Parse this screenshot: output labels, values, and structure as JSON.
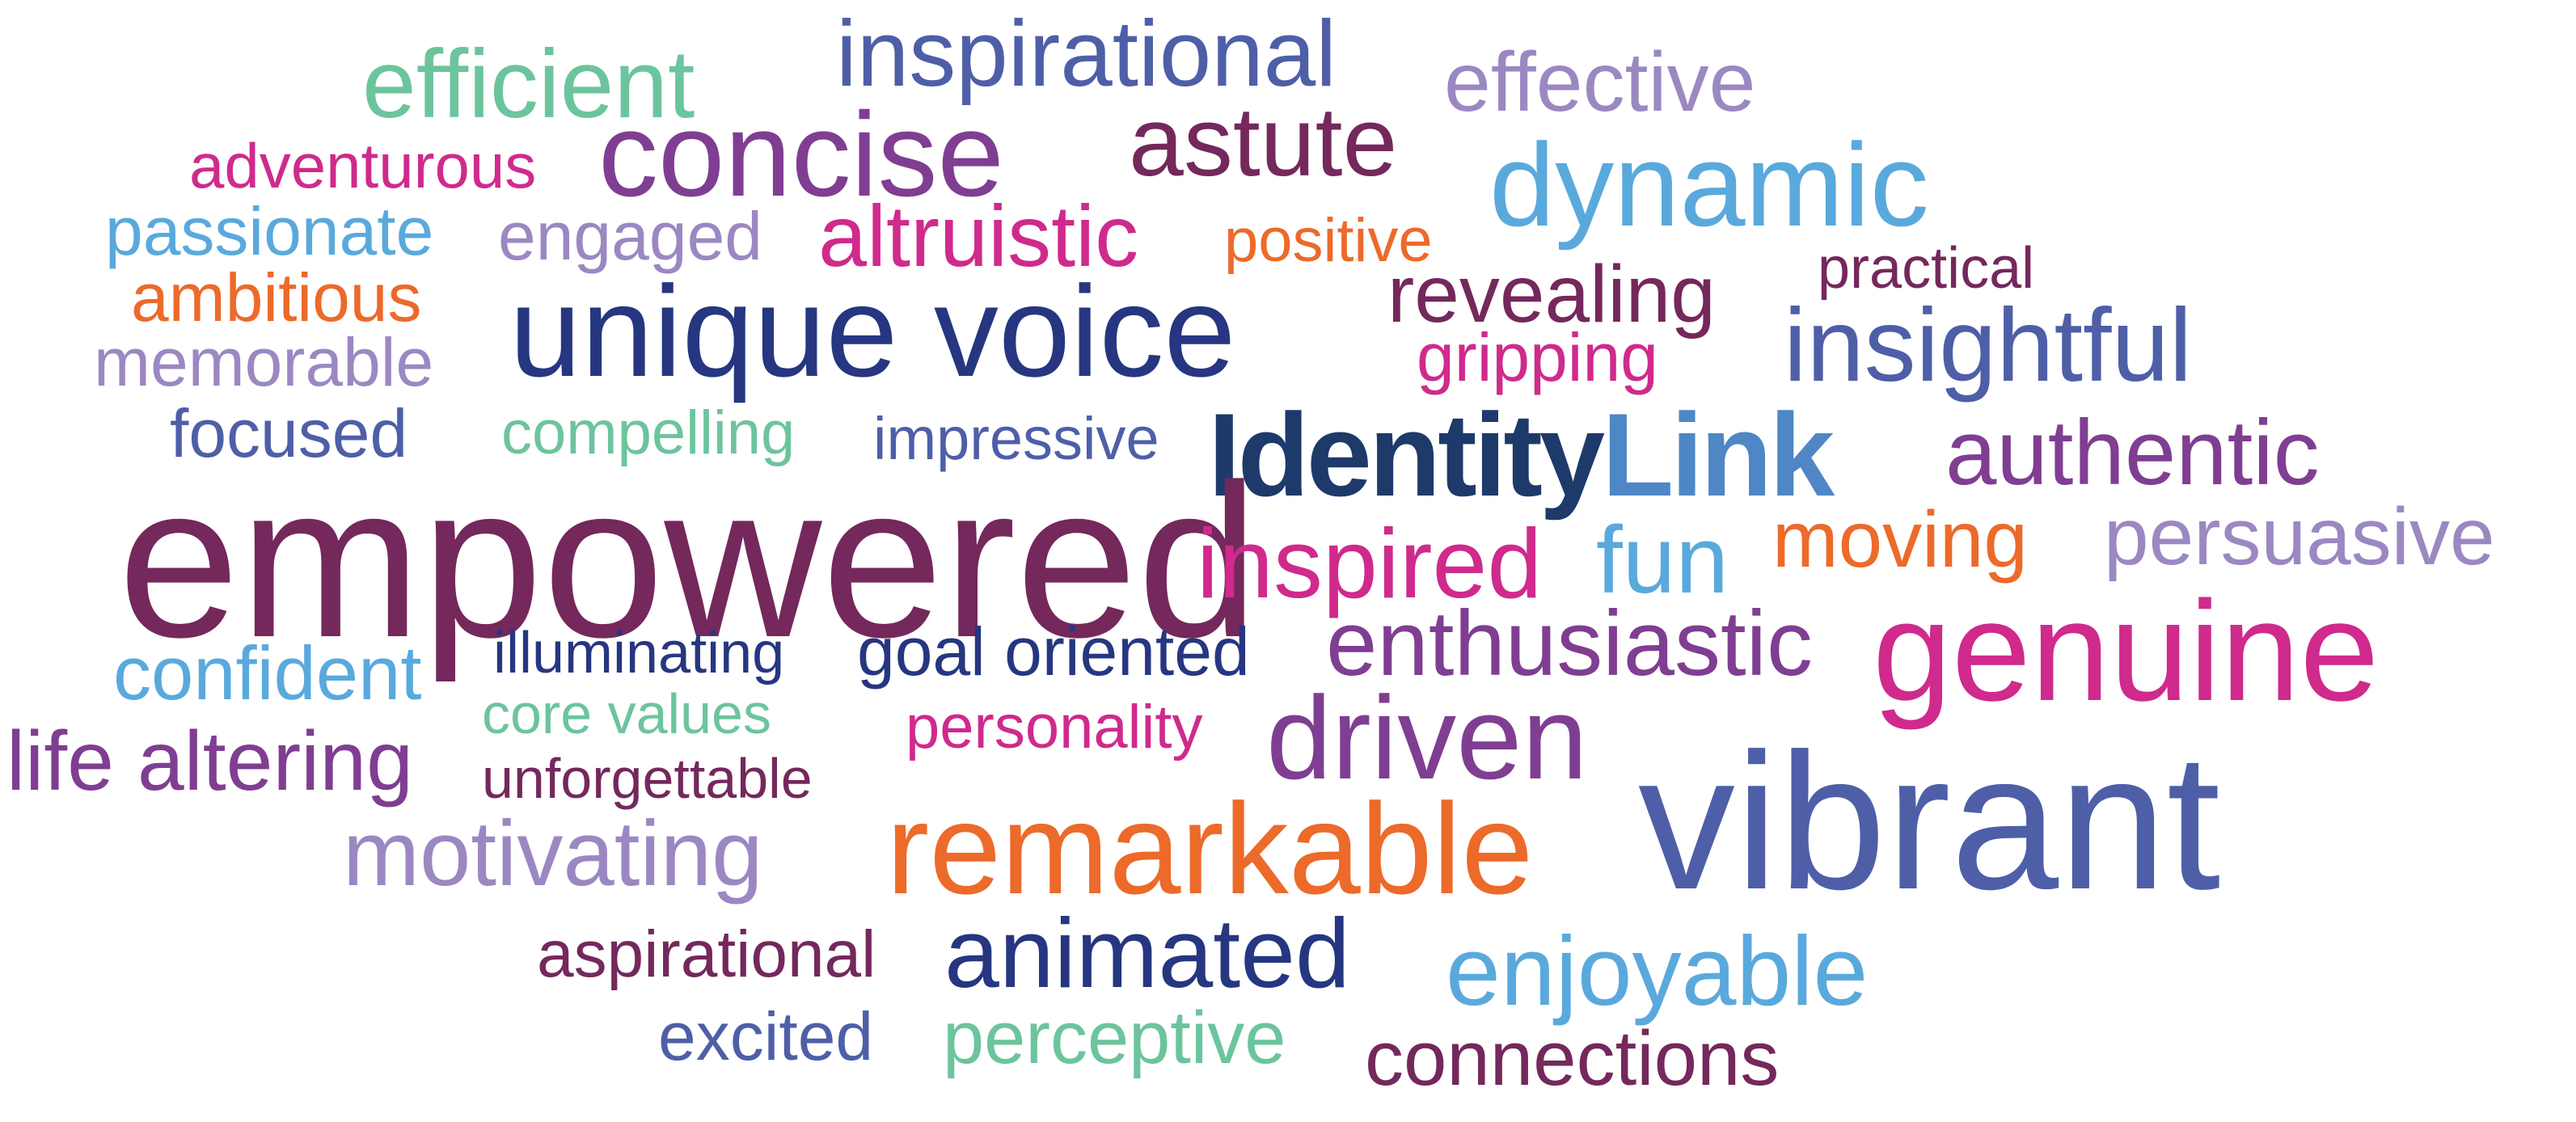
{
  "palette": {
    "teal": "#6cc49d",
    "slate_blue": "#4e5fa8",
    "lavender": "#9b88c2",
    "magenta": "#cf2a8c",
    "purple": "#7f3e92",
    "plum": "#74285c",
    "sky": "#5aa9dd",
    "orange": "#ec6a2a",
    "navy": "#263680",
    "brand_dark": "#1d3a6a",
    "brand_light": "#4f86c6"
  },
  "brand": {
    "part1": "Identity",
    "part2": "Link"
  },
  "words": [
    {
      "text": "efficient",
      "color": "teal"
    },
    {
      "text": "inspirational",
      "color": "slate_blue"
    },
    {
      "text": "effective",
      "color": "lavender"
    },
    {
      "text": "adventurous",
      "color": "magenta"
    },
    {
      "text": "concise",
      "color": "purple"
    },
    {
      "text": "astute",
      "color": "plum"
    },
    {
      "text": "dynamic",
      "color": "sky"
    },
    {
      "text": "passionate",
      "color": "sky"
    },
    {
      "text": "engaged",
      "color": "lavender"
    },
    {
      "text": "altruistic",
      "color": "magenta"
    },
    {
      "text": "positive",
      "color": "orange"
    },
    {
      "text": "practical",
      "color": "plum"
    },
    {
      "text": "ambitious",
      "color": "orange"
    },
    {
      "text": "unique voice",
      "color": "navy"
    },
    {
      "text": "revealing",
      "color": "plum"
    },
    {
      "text": "insightful",
      "color": "slate_blue"
    },
    {
      "text": "memorable",
      "color": "lavender"
    },
    {
      "text": "gripping",
      "color": "magenta"
    },
    {
      "text": "focused",
      "color": "slate_blue"
    },
    {
      "text": "compelling",
      "color": "teal"
    },
    {
      "text": "impressive",
      "color": "slate_blue"
    },
    {
      "text": "authentic",
      "color": "purple"
    },
    {
      "text": "empowered",
      "color": "plum"
    },
    {
      "text": "moving",
      "color": "orange"
    },
    {
      "text": "persuasive",
      "color": "lavender"
    },
    {
      "text": "inspired",
      "color": "magenta"
    },
    {
      "text": "fun",
      "color": "sky"
    },
    {
      "text": "genuine",
      "color": "magenta"
    },
    {
      "text": "illuminating",
      "color": "navy"
    },
    {
      "text": "goal oriented",
      "color": "navy"
    },
    {
      "text": "enthusiastic",
      "color": "purple"
    },
    {
      "text": "confident",
      "color": "sky"
    },
    {
      "text": "core values",
      "color": "teal"
    },
    {
      "text": "personality",
      "color": "magenta"
    },
    {
      "text": "driven",
      "color": "purple"
    },
    {
      "text": "life altering",
      "color": "purple"
    },
    {
      "text": "unforgettable",
      "color": "plum"
    },
    {
      "text": "vibrant",
      "color": "slate_blue"
    },
    {
      "text": "motivating",
      "color": "lavender"
    },
    {
      "text": "remarkable",
      "color": "orange"
    },
    {
      "text": "aspirational",
      "color": "plum"
    },
    {
      "text": "animated",
      "color": "navy"
    },
    {
      "text": "enjoyable",
      "color": "sky"
    },
    {
      "text": "excited",
      "color": "slate_blue"
    },
    {
      "text": "perceptive",
      "color": "teal"
    },
    {
      "text": "connections",
      "color": "plum"
    }
  ]
}
